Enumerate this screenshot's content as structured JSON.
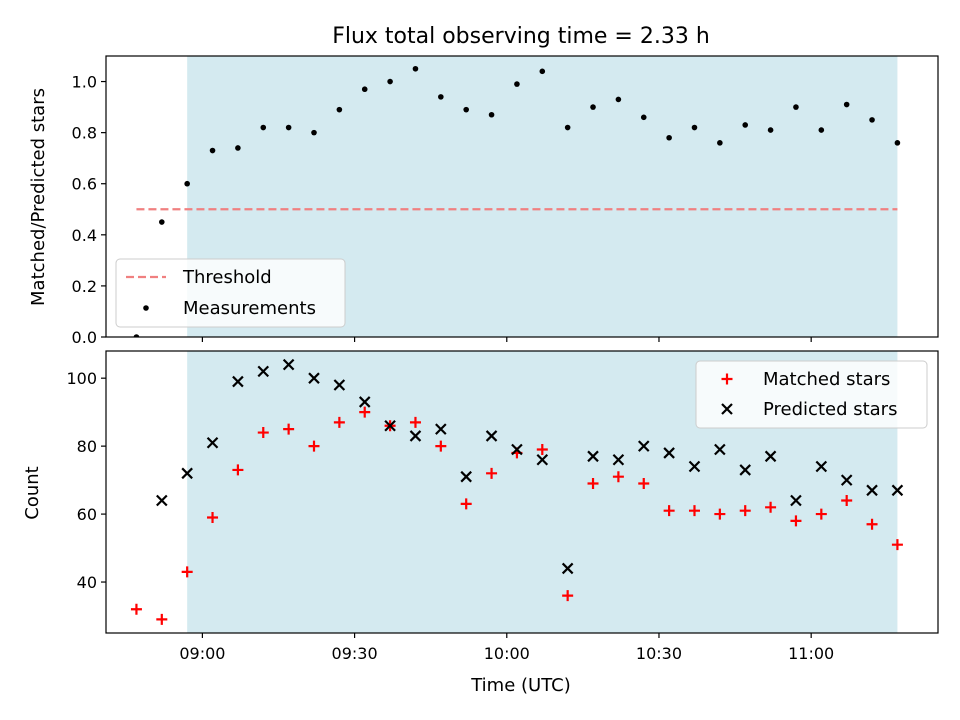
{
  "title": "Flux total observing time = 2.33 h",
  "xlabel": "Time (UTC)",
  "colors": {
    "shade": "#d4eaf0",
    "threshold": "#f08080",
    "matched": "#ff0000",
    "predicted": "#000000",
    "measurements": "#000000"
  },
  "chart_data": [
    {
      "type": "scatter",
      "ylabel": "Matched/Predicted stars",
      "xlim": [
        "08:41",
        "11:25"
      ],
      "ylim": [
        0,
        1.1
      ],
      "yticks": [
        0.0,
        0.2,
        0.4,
        0.6,
        0.8,
        1.0
      ],
      "ytick_labels": [
        "0.0",
        "0.2",
        "0.4",
        "0.6",
        "0.8",
        "1.0"
      ],
      "shaded_span": [
        "08:57",
        "11:17"
      ],
      "threshold": {
        "name": "Threshold",
        "value": 0.5,
        "x_range": [
          "08:47",
          "11:17"
        ],
        "style": "dashed"
      },
      "legend": {
        "placement": "lower-left",
        "entries": [
          "Threshold",
          "Measurements"
        ]
      },
      "series": [
        {
          "name": "Measurements",
          "marker": "dot",
          "x": [
            "08:47",
            "08:52",
            "08:57",
            "09:02",
            "09:07",
            "09:12",
            "09:17",
            "09:22",
            "09:27",
            "09:32",
            "09:37",
            "09:42",
            "09:47",
            "09:52",
            "09:57",
            "10:02",
            "10:07",
            "10:12",
            "10:17",
            "10:22",
            "10:27",
            "10:32",
            "10:37",
            "10:42",
            "10:47",
            "10:52",
            "10:57",
            "11:02",
            "11:07",
            "11:12",
            "11:17"
          ],
          "y": [
            0.0,
            0.45,
            0.6,
            0.73,
            0.74,
            0.82,
            0.82,
            0.8,
            0.89,
            0.97,
            1.0,
            1.05,
            0.94,
            0.89,
            0.87,
            0.99,
            1.04,
            0.82,
            0.9,
            0.93,
            0.86,
            0.78,
            0.82,
            0.76,
            0.83,
            0.81,
            0.9,
            0.81,
            0.91,
            0.85,
            0.76
          ]
        }
      ]
    },
    {
      "type": "scatter",
      "ylabel": "Count",
      "xlim": [
        "08:41",
        "11:25"
      ],
      "ylim": [
        25,
        108
      ],
      "yticks": [
        40,
        60,
        80,
        100
      ],
      "ytick_labels": [
        "40",
        "60",
        "80",
        "100"
      ],
      "xticks": [
        "09:00",
        "09:30",
        "10:00",
        "10:30",
        "11:00"
      ],
      "xtick_labels": [
        "09:00",
        "09:30",
        "10:00",
        "10:30",
        "11:00"
      ],
      "shaded_span": [
        "08:57",
        "11:17"
      ],
      "legend": {
        "placement": "upper-right",
        "entries": [
          "Matched stars",
          "Predicted stars"
        ]
      },
      "series": [
        {
          "name": "Matched stars",
          "marker": "plus",
          "x": [
            "08:47",
            "08:52",
            "08:57",
            "09:02",
            "09:07",
            "09:12",
            "09:17",
            "09:22",
            "09:27",
            "09:32",
            "09:37",
            "09:42",
            "09:47",
            "09:52",
            "09:57",
            "10:02",
            "10:07",
            "10:12",
            "10:17",
            "10:22",
            "10:27",
            "10:32",
            "10:37",
            "10:42",
            "10:47",
            "10:52",
            "10:57",
            "11:02",
            "11:07",
            "11:12",
            "11:17"
          ],
          "y": [
            32,
            29,
            43,
            59,
            73,
            84,
            85,
            80,
            87,
            90,
            86,
            87,
            80,
            63,
            72,
            78,
            79,
            36,
            69,
            71,
            69,
            61,
            61,
            60,
            61,
            62,
            58,
            60,
            64,
            57,
            51
          ]
        },
        {
          "name": "Predicted stars",
          "marker": "x",
          "x": [
            "08:52",
            "08:57",
            "09:02",
            "09:07",
            "09:12",
            "09:17",
            "09:22",
            "09:27",
            "09:32",
            "09:37",
            "09:42",
            "09:47",
            "09:52",
            "09:57",
            "10:02",
            "10:07",
            "10:12",
            "10:17",
            "10:22",
            "10:27",
            "10:32",
            "10:37",
            "10:42",
            "10:47",
            "10:52",
            "10:57",
            "11:02",
            "11:07",
            "11:12",
            "11:17"
          ],
          "y": [
            64,
            72,
            81,
            99,
            102,
            104,
            100,
            98,
            93,
            86,
            83,
            85,
            71,
            83,
            79,
            76,
            44,
            77,
            76,
            80,
            78,
            74,
            79,
            73,
            77,
            64,
            74,
            70,
            67,
            67
          ]
        }
      ]
    }
  ]
}
